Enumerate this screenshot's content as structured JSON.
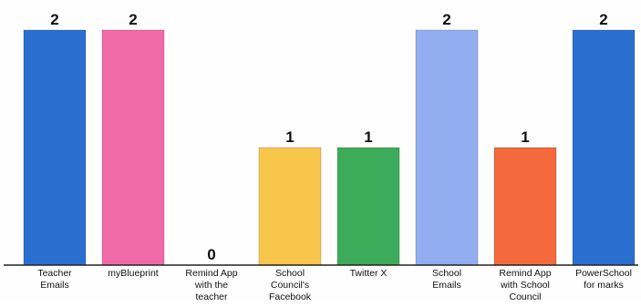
{
  "chart_data": {
    "type": "bar",
    "title": "",
    "xlabel": "",
    "ylabel": "",
    "ylim": [
      0,
      2
    ],
    "grid": false,
    "legend": "none",
    "categories": [
      [
        "Teacher",
        "Emails"
      ],
      [
        "myBlueprint"
      ],
      [
        "Remind App",
        "with the",
        "teacher"
      ],
      [
        "School",
        "Council's",
        "Facebook"
      ],
      [
        "Twitter X"
      ],
      [
        "School",
        "Emails"
      ],
      [
        "Remind App",
        "with School",
        "Council"
      ],
      [
        "PowerSchool",
        "for marks"
      ]
    ],
    "values": [
      2,
      2,
      0,
      1,
      1,
      2,
      1,
      2
    ],
    "colors": [
      "#2a6fd0",
      "#f06aa8",
      "#cccccc",
      "#f8c64a",
      "#3dac5a",
      "#93aef0",
      "#f56a3c",
      "#2a6fd0"
    ],
    "axis_color": "#222222"
  }
}
